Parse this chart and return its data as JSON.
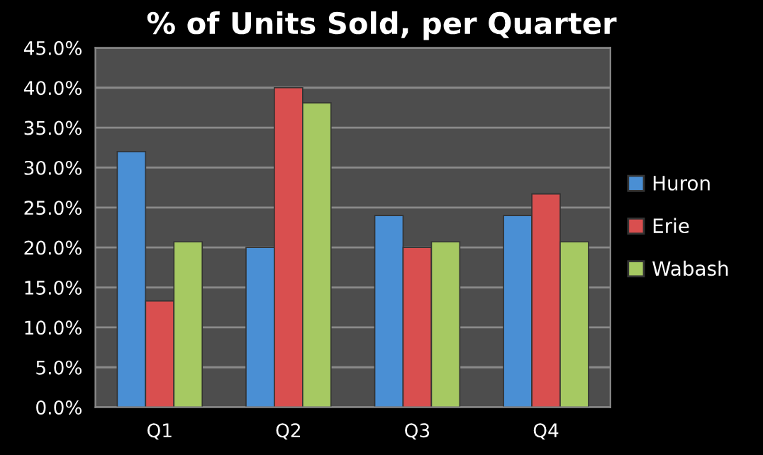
{
  "chart_data": {
    "type": "bar",
    "title": "% of Units Sold, per Quarter",
    "categories": [
      "Q1",
      "Q2",
      "Q3",
      "Q4"
    ],
    "series": [
      {
        "name": "Huron",
        "color": "#4a8fd4",
        "values": [
          32.0,
          20.0,
          24.0,
          24.0
        ]
      },
      {
        "name": "Erie",
        "color": "#d94f4f",
        "values": [
          13.3,
          40.0,
          20.0,
          26.7
        ]
      },
      {
        "name": "Wabash",
        "color": "#a6c962",
        "values": [
          20.7,
          38.1,
          20.7,
          20.7
        ]
      }
    ],
    "ylim": [
      0,
      45
    ],
    "yticks": [
      {
        "value": 0,
        "label": "0.0%"
      },
      {
        "value": 5,
        "label": "5.0%"
      },
      {
        "value": 10,
        "label": "10.0%"
      },
      {
        "value": 15,
        "label": "15.0%"
      },
      {
        "value": 20,
        "label": "20.0%"
      },
      {
        "value": 25,
        "label": "25.0%"
      },
      {
        "value": 30,
        "label": "30.0%"
      },
      {
        "value": 35,
        "label": "35.0%"
      },
      {
        "value": 40,
        "label": "40.0%"
      },
      {
        "value": 45,
        "label": "45.0%"
      }
    ],
    "grid": "y",
    "legend": "right"
  }
}
